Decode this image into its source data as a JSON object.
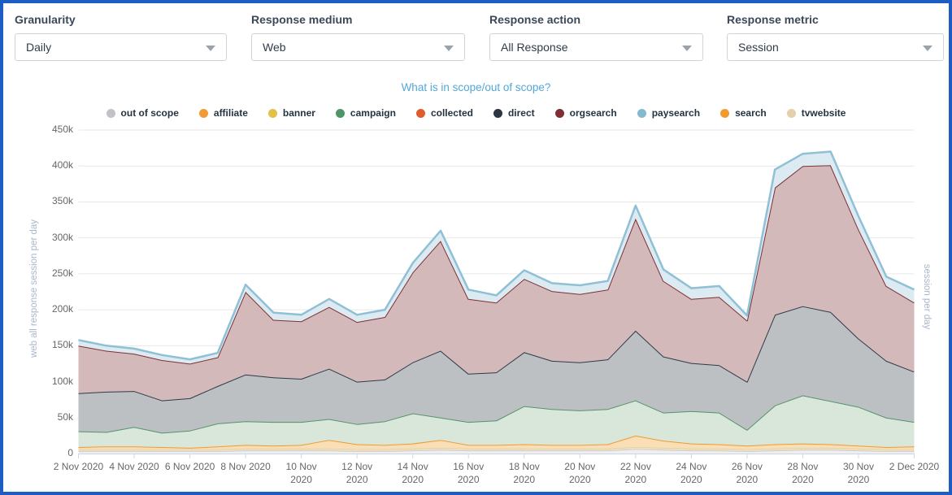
{
  "filters": {
    "items": [
      {
        "label": "Granularity",
        "value": "Daily"
      },
      {
        "label": "Response medium",
        "value": "Web"
      },
      {
        "label": "Response action",
        "value": "All Response"
      },
      {
        "label": "Response metric",
        "value": "Session"
      }
    ]
  },
  "scope_link": {
    "text": "What is in scope/out of scope?"
  },
  "legend": {
    "items": [
      {
        "label": "out of scope",
        "color": "#c2c2c6"
      },
      {
        "label": "affiliate",
        "color": "#f09a38"
      },
      {
        "label": "banner",
        "color": "#e2c04a"
      },
      {
        "label": "campaign",
        "color": "#4e9568"
      },
      {
        "label": "collected",
        "color": "#df5c2c"
      },
      {
        "label": "direct",
        "color": "#2b3642"
      },
      {
        "label": "orgsearch",
        "color": "#7e2f33"
      },
      {
        "label": "paysearch",
        "color": "#85b9d1"
      },
      {
        "label": "search",
        "color": "#ef9b2d"
      },
      {
        "label": "tvwebsite",
        "color": "#e4d0a9"
      }
    ]
  },
  "chart_data": {
    "type": "area",
    "stacked": true,
    "unit": "thousand sessions per day",
    "y_axis_left_title": "web all response session per day",
    "y_axis_right_title": "session per day",
    "ylim": [
      0,
      450
    ],
    "y_tick_values": [
      0,
      50,
      100,
      150,
      200,
      250,
      300,
      350,
      400,
      450
    ],
    "y_tick_labels": [
      "0",
      "50k",
      "100k",
      "150k",
      "200k",
      "250k",
      "300k",
      "350k",
      "400k",
      "450k"
    ],
    "x_tick_every": 2,
    "x": [
      "2 Nov 2020",
      "3 Nov 2020",
      "4 Nov 2020",
      "5 Nov 2020",
      "6 Nov 2020",
      "7 Nov 2020",
      "8 Nov 2020",
      "9 Nov 2020",
      "10 Nov 2020",
      "11 Nov 2020",
      "12 Nov 2020",
      "13 Nov 2020",
      "14 Nov 2020",
      "15 Nov 2020",
      "16 Nov 2020",
      "17 Nov 2020",
      "18 Nov 2020",
      "19 Nov 2020",
      "20 Nov 2020",
      "21 Nov 2020",
      "22 Nov 2020",
      "23 Nov 2020",
      "24 Nov 2020",
      "25 Nov 2020",
      "26 Nov 2020",
      "27 Nov 2020",
      "28 Nov 2020",
      "29 Nov 2020",
      "30 Nov 2020",
      "1 Dec 2020",
      "2 Dec 2020"
    ],
    "series": [
      {
        "name": "out of scope",
        "color": "#c5c5c8",
        "fill": "#efeff1",
        "line_width": 1.2,
        "values": [
          3,
          3,
          3,
          3,
          3,
          3,
          4,
          4,
          4,
          4,
          3,
          3,
          4,
          5,
          4,
          4,
          4,
          4,
          4,
          4,
          6,
          5,
          4,
          4,
          3,
          4,
          5,
          5,
          4,
          3,
          3
        ]
      },
      {
        "name": "affiliate",
        "color": "#f09a38",
        "fill": "none",
        "line_width": 0,
        "values": [
          0,
          0,
          0,
          0,
          0,
          0,
          0,
          0,
          0,
          0,
          0,
          0,
          0,
          0,
          0,
          0,
          0,
          0,
          0,
          0,
          0,
          0,
          0,
          0,
          0,
          0,
          0,
          0,
          0,
          0,
          0
        ]
      },
      {
        "name": "banner",
        "color": "#e2c04a",
        "fill": "none",
        "line_width": 0,
        "values": [
          0,
          0,
          0,
          0,
          0,
          0,
          0,
          0,
          0,
          0,
          0,
          0,
          0,
          0,
          0,
          0,
          0,
          0,
          0,
          0,
          0,
          0,
          0,
          0,
          0,
          0,
          0,
          0,
          0,
          0,
          0
        ]
      },
      {
        "name": "collected",
        "color": "#df5c2c",
        "fill": "none",
        "line_width": 0,
        "values": [
          0,
          0,
          0,
          0,
          0,
          0,
          0,
          0,
          0,
          0,
          0,
          0,
          0,
          0,
          0,
          0,
          0,
          0,
          0,
          0,
          0,
          0,
          0,
          0,
          0,
          0,
          0,
          0,
          0,
          0,
          0
        ]
      },
      {
        "name": "tvwebsite",
        "color": "#dfcda3",
        "fill": "#ecdfc0",
        "line_width": 1.2,
        "values": [
          3,
          3,
          3,
          3,
          3,
          3,
          3,
          3,
          3,
          3,
          3,
          3,
          3,
          3,
          3,
          3,
          3,
          3,
          3,
          3,
          3,
          3,
          3,
          3,
          3,
          3,
          3,
          3,
          3,
          3,
          3
        ]
      },
      {
        "name": "search",
        "color": "#ee9b31",
        "fill": "#fadfb6",
        "line_width": 2,
        "values": [
          3,
          4,
          4,
          3,
          2,
          4,
          5,
          4,
          5,
          12,
          7,
          6,
          7,
          11,
          5,
          5,
          6,
          5,
          5,
          6,
          16,
          10,
          7,
          6,
          5,
          6,
          6,
          5,
          4,
          3,
          4
        ]
      },
      {
        "name": "campaign",
        "color": "#55936b",
        "fill": "#d9e7db",
        "line_width": 2,
        "values": [
          22,
          20,
          27,
          20,
          24,
          32,
          33,
          33,
          32,
          29,
          28,
          33,
          42,
          31,
          32,
          34,
          53,
          50,
          48,
          49,
          49,
          39,
          45,
          44,
          22,
          54,
          67,
          60,
          54,
          41,
          34
        ]
      },
      {
        "name": "direct",
        "color": "#2e3a47",
        "fill": "#bdc0c2",
        "line_width": 2,
        "values": [
          53,
          56,
          50,
          45,
          45,
          52,
          65,
          62,
          60,
          70,
          59,
          58,
          71,
          93,
          67,
          67,
          75,
          67,
          67,
          69,
          97,
          78,
          67,
          66,
          67,
          126,
          124,
          124,
          95,
          79,
          70
        ]
      },
      {
        "name": "orgsearch",
        "color": "#7e3036",
        "fill": "#d3b9b9",
        "line_width": 2,
        "values": [
          66,
          57,
          52,
          56,
          48,
          40,
          115,
          80,
          80,
          86,
          83,
          87,
          125,
          153,
          104,
          97,
          102,
          97,
          95,
          97,
          156,
          105,
          89,
          95,
          85,
          177,
          195,
          204,
          152,
          104,
          96
        ]
      },
      {
        "name": "paysearch",
        "color": "#8fc0d6",
        "fill": "#dcebf2",
        "line_width": 2.5,
        "values": [
          8,
          7,
          7,
          7,
          6,
          6,
          10,
          10,
          9,
          11,
          10,
          10,
          13,
          14,
          13,
          10,
          12,
          11,
          12,
          12,
          18,
          16,
          15,
          15,
          7,
          25,
          17,
          19,
          18,
          13,
          18
        ]
      }
    ],
    "grid_color": "#e7e7e7",
    "axis_line_color": "#ccd6eb"
  }
}
